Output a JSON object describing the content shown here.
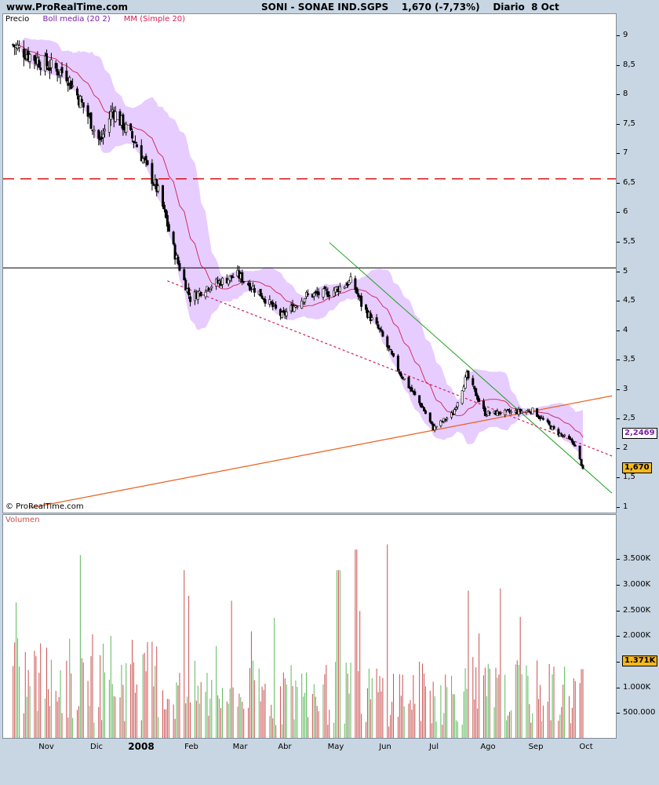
{
  "header": {
    "site": "www.ProRealTime.com",
    "title": "SONI - SONAE IND.SGPS    1,670 (-7,73%)    Diario  8 Oct"
  },
  "legend": {
    "price": "Precio",
    "bollinger": "Boll media (20 2)",
    "sma": "MM (Simple 20)",
    "volume": "Volumen"
  },
  "copyright": "© ProRealTime.com",
  "tags": {
    "boll_mid": "2,2469",
    "last_price": "1,670",
    "last_volume": "1.371K"
  },
  "colors": {
    "candle": "#000000",
    "boll_band": "#e6ccff",
    "sma": "#d21e50",
    "resistance_h": "#d40000",
    "support_h": "#000000",
    "down_trend": "#19a019",
    "up_trend": "#e8601c",
    "vol_up": "#5cb85c",
    "vol_down": "#c9504f"
  },
  "chart_data": [
    {
      "type": "candlestick",
      "title": "SONI - SONAE IND.SGPS",
      "ylim": [
        1,
        9.3
      ],
      "y_ticks": [
        "1",
        "1,5",
        "2",
        "2,5",
        "3",
        "3,5",
        "4",
        "4,5",
        "5",
        "5,5",
        "6",
        "6,5",
        "7",
        "7,5",
        "8",
        "8,5",
        "9"
      ],
      "x_ticks": [
        "Nov",
        "Dic",
        "2008",
        "Feb",
        "Mar",
        "Abr",
        "May",
        "Jun",
        "Jul",
        "Ago",
        "Sep",
        "Oct"
      ],
      "last": {
        "close": 1.67,
        "change_pct": -7.73,
        "date": "8 Oct"
      },
      "bollinger_mid_last": 2.2469,
      "horizontal_lines": [
        {
          "level": 6.58,
          "style": "dashed"
        },
        {
          "level": 5.07,
          "style": "solid"
        }
      ],
      "close_path": [
        {
          "x": "2007-10-01",
          "y": 8.85
        },
        {
          "x": "2007-10-20",
          "y": 8.55
        },
        {
          "x": "2007-11-05",
          "y": 8.35
        },
        {
          "x": "2007-11-20",
          "y": 7.6
        },
        {
          "x": "2007-11-27",
          "y": 7.2
        },
        {
          "x": "2007-12-05",
          "y": 7.75
        },
        {
          "x": "2007-12-20",
          "y": 7.2
        },
        {
          "x": "2008-01-05",
          "y": 6.3
        },
        {
          "x": "2008-01-15",
          "y": 5.3
        },
        {
          "x": "2008-01-25",
          "y": 4.55
        },
        {
          "x": "2008-02-05",
          "y": 4.75
        },
        {
          "x": "2008-02-25",
          "y": 4.95
        },
        {
          "x": "2008-03-10",
          "y": 4.65
        },
        {
          "x": "2008-03-25",
          "y": 4.25
        },
        {
          "x": "2008-04-10",
          "y": 4.6
        },
        {
          "x": "2008-04-25",
          "y": 4.65
        },
        {
          "x": "2008-05-10",
          "y": 4.85
        },
        {
          "x": "2008-05-16",
          "y": 4.45
        },
        {
          "x": "2008-05-28",
          "y": 4.0
        },
        {
          "x": "2008-06-10",
          "y": 3.3
        },
        {
          "x": "2008-06-25",
          "y": 2.7
        },
        {
          "x": "2008-07-02",
          "y": 2.35
        },
        {
          "x": "2008-07-15",
          "y": 2.6
        },
        {
          "x": "2008-07-24",
          "y": 3.25
        },
        {
          "x": "2008-08-05",
          "y": 2.6
        },
        {
          "x": "2008-08-20",
          "y": 2.62
        },
        {
          "x": "2008-09-05",
          "y": 2.65
        },
        {
          "x": "2008-09-20",
          "y": 2.3
        },
        {
          "x": "2008-10-02",
          "y": 2.1
        },
        {
          "x": "2008-10-08",
          "y": 1.67
        }
      ],
      "trend_lines": [
        {
          "from": {
            "x": "2008-04-25",
            "y": 5.5
          },
          "to": {
            "x": "2008-10-27",
            "y": 1.25
          }
        },
        {
          "from": {
            "x": "2007-10-12",
            "y": 1.0
          },
          "to": {
            "x": "2008-10-27",
            "y": 2.9
          }
        },
        {
          "from": {
            "x": "2008-01-10",
            "y": 4.85
          },
          "to": {
            "x": "2008-10-27",
            "y": 1.88
          }
        }
      ]
    },
    {
      "type": "bar",
      "title": "Volumen",
      "ylim": [
        0,
        3900000
      ],
      "y_ticks": [
        "500.000",
        "1.000K",
        "1.500K",
        "2.000K",
        "2.500K",
        "3.000K",
        "3.500K"
      ],
      "last_value": 1371000,
      "peaks": [
        {
          "x": "2008-01-20",
          "y": 3300000
        },
        {
          "x": "2008-05-01",
          "y": 3300000
        },
        {
          "x": "2008-05-12",
          "y": 3700000
        },
        {
          "x": "2008-06-01",
          "y": 3800000
        },
        {
          "x": "2008-07-26",
          "y": 2900000
        },
        {
          "x": "2008-10-08",
          "y": 1371000
        }
      ]
    }
  ]
}
